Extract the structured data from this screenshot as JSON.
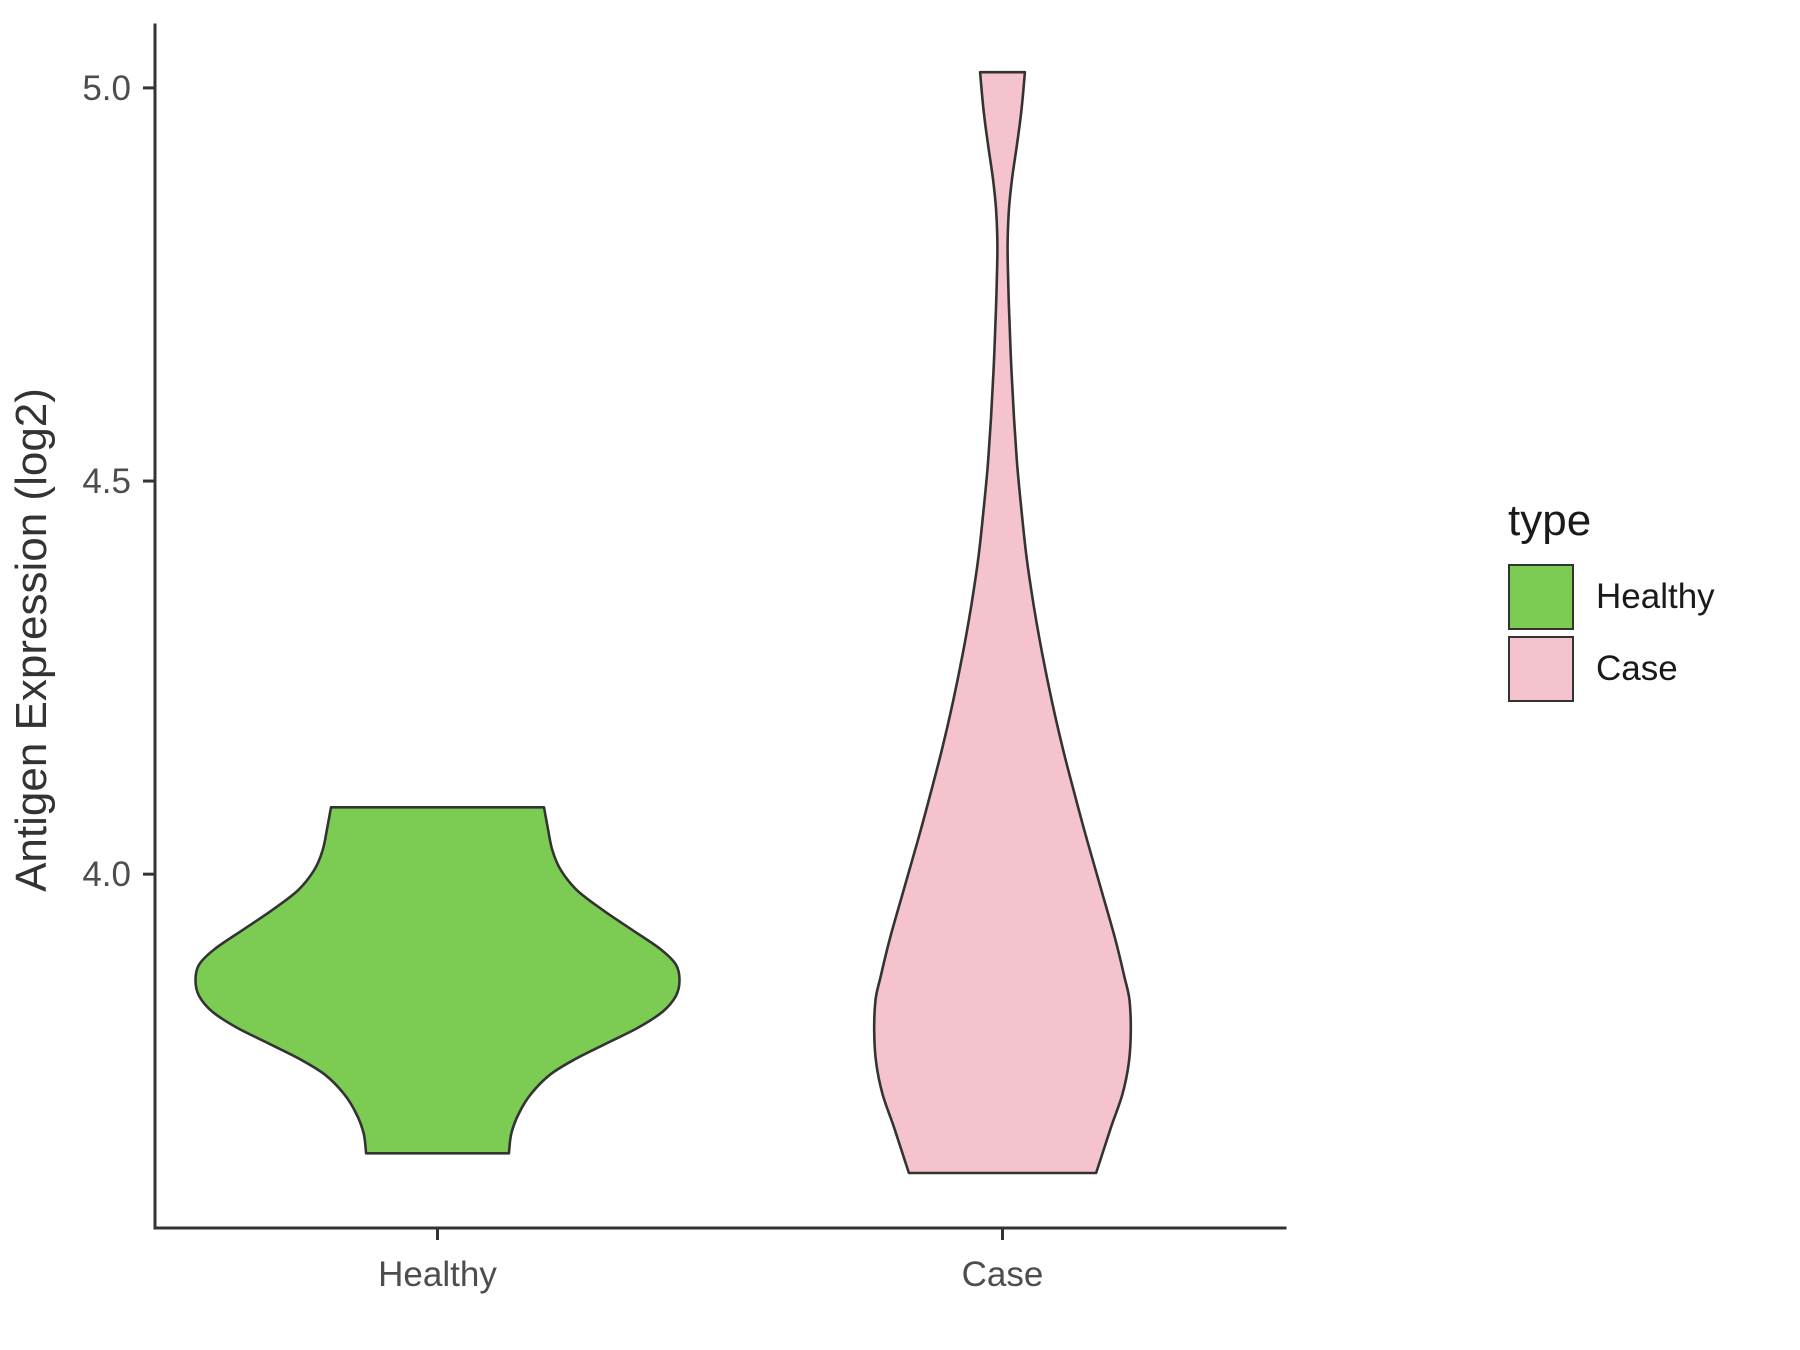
{
  "chart_data": {
    "type": "violin",
    "title": "",
    "xlabel": "",
    "ylabel": "Antigen Expression (log2)",
    "categories": [
      "Healthy",
      "Case"
    ],
    "ylim": [
      3.55,
      5.08
    ],
    "y_ticks": [
      {
        "value": 5.0,
        "label": "5.0"
      },
      {
        "value": 4.5,
        "label": "4.5"
      },
      {
        "value": 4.0,
        "label": "4.0"
      }
    ],
    "grid": false,
    "stroke_color": "#333333",
    "legend": {
      "title": "type",
      "position": "right",
      "entries": [
        {
          "label": "Healthy",
          "color": "#7CCC54"
        },
        {
          "label": "Case",
          "color": "#F5C3CE"
        }
      ]
    },
    "series": [
      {
        "name": "Healthy",
        "fill": "#7CCC54",
        "relative_max_width": 1.0,
        "profile": [
          [
            4.085,
            0.44
          ],
          [
            4.06,
            0.455
          ],
          [
            4.03,
            0.475
          ],
          [
            4.005,
            0.51
          ],
          [
            3.98,
            0.575
          ],
          [
            3.955,
            0.68
          ],
          [
            3.93,
            0.8
          ],
          [
            3.905,
            0.92
          ],
          [
            3.885,
            0.985
          ],
          [
            3.865,
            1.0
          ],
          [
            3.845,
            0.985
          ],
          [
            3.825,
            0.93
          ],
          [
            3.805,
            0.83
          ],
          [
            3.785,
            0.7
          ],
          [
            3.765,
            0.57
          ],
          [
            3.745,
            0.465
          ],
          [
            3.72,
            0.385
          ],
          [
            3.695,
            0.335
          ],
          [
            3.67,
            0.305
          ],
          [
            3.645,
            0.295
          ]
        ]
      },
      {
        "name": "Case",
        "fill": "#F5C3CE",
        "relative_max_width": 0.53,
        "profile": [
          [
            5.02,
            0.175
          ],
          [
            4.975,
            0.15
          ],
          [
            4.93,
            0.115
          ],
          [
            4.885,
            0.075
          ],
          [
            4.845,
            0.05
          ],
          [
            4.8,
            0.04
          ],
          [
            4.75,
            0.045
          ],
          [
            4.7,
            0.055
          ],
          [
            4.64,
            0.07
          ],
          [
            4.58,
            0.09
          ],
          [
            4.52,
            0.115
          ],
          [
            4.46,
            0.15
          ],
          [
            4.4,
            0.19
          ],
          [
            4.34,
            0.245
          ],
          [
            4.28,
            0.31
          ],
          [
            4.22,
            0.385
          ],
          [
            4.16,
            0.47
          ],
          [
            4.1,
            0.565
          ],
          [
            4.04,
            0.665
          ],
          [
            3.98,
            0.77
          ],
          [
            3.92,
            0.875
          ],
          [
            3.87,
            0.95
          ],
          [
            3.84,
            0.99
          ],
          [
            3.8,
            1.0
          ],
          [
            3.76,
            0.985
          ],
          [
            3.72,
            0.935
          ],
          [
            3.68,
            0.85
          ],
          [
            3.65,
            0.79
          ],
          [
            3.62,
            0.73
          ]
        ]
      }
    ]
  }
}
